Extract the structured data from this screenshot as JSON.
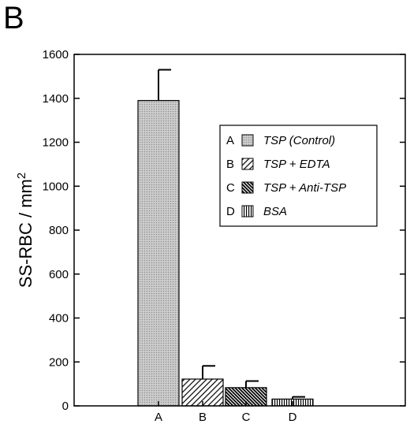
{
  "panel_label": "B",
  "chart_data": {
    "type": "bar",
    "categories": [
      "A",
      "B",
      "C",
      "D"
    ],
    "values": [
      1390,
      122,
      83,
      31
    ],
    "errors": [
      140,
      60,
      30,
      10
    ],
    "ylabel": "SS-RBC / mm",
    "ylabel_superscript": "2",
    "ylim": [
      0,
      1600
    ],
    "yticks": [
      "0",
      "200",
      "400",
      "600",
      "800",
      "1000",
      "1200",
      "1400",
      "1600"
    ],
    "grid": false,
    "legend_position": "top-right",
    "legend": [
      {
        "letter": "A",
        "label": "TSP (Control)",
        "pattern": "stipple"
      },
      {
        "letter": "B",
        "label": "TSP + EDTA",
        "pattern": "diag-light"
      },
      {
        "letter": "C",
        "label": "TSP + Anti-TSP",
        "pattern": "diag-dense"
      },
      {
        "letter": "D",
        "label": "BSA",
        "pattern": "vertical"
      }
    ]
  }
}
